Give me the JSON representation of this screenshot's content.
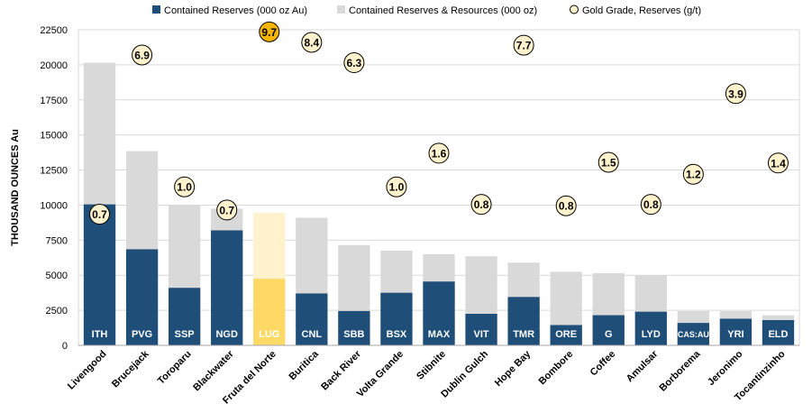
{
  "chart_data": {
    "type": "bar",
    "title": "",
    "ylabel": "THOUSAND  OUNCES Au",
    "xlabel": "",
    "ylim": [
      0,
      22500
    ],
    "yticks": [
      0,
      2500,
      5000,
      7500,
      10000,
      12500,
      15000,
      17500,
      20000,
      22500
    ],
    "grid": true,
    "legend_position": "top",
    "legend": {
      "reserves": "Contained Reserves (000 oz Au)",
      "resources": "Contained Reserves & Resources (000 oz)",
      "grade": "Gold Grade, Reserves (g/t)"
    },
    "categories": [
      "Livengood",
      "Brucejack",
      "Toroparu",
      "Blackwater",
      "Fruta del Norte",
      "Buritica",
      "Back River",
      "Volta Grande",
      "Stibnite",
      "Dublin Gulch",
      "Hope Bay",
      "Bombore",
      "Coffee",
      "Amulsar",
      "Borborema",
      "Jeronimo",
      "Tocantinzinho"
    ],
    "tickers": [
      "ITH",
      "PVG",
      "SSP",
      "NGD",
      "LUG",
      "CNL",
      "SBB",
      "BSX",
      "MAX",
      "VIT",
      "TMR",
      "ORE",
      "G",
      "LYD",
      "CAS:AU",
      "YRI",
      "ELD"
    ],
    "highlight_index": 4,
    "series": [
      {
        "name": "Contained Reserves & Resources (000 oz)",
        "values": [
          20150,
          13850,
          10000,
          9750,
          9450,
          9100,
          7150,
          6750,
          6500,
          6350,
          5900,
          5250,
          5150,
          5000,
          2450,
          2450,
          2150
        ]
      },
      {
        "name": "Contained Reserves (000 oz Au)",
        "values": [
          10050,
          6850,
          4100,
          8200,
          4750,
          3700,
          2450,
          3750,
          4550,
          2250,
          3450,
          1450,
          2150,
          2400,
          1600,
          1900,
          1800
        ]
      },
      {
        "name": "Gold Grade, Reserves (g/t)",
        "values": [
          0.7,
          6.9,
          1.0,
          0.7,
          9.7,
          8.4,
          6.3,
          1.0,
          1.6,
          0.8,
          7.7,
          0.8,
          1.5,
          0.8,
          1.2,
          3.9,
          1.4
        ]
      }
    ],
    "grade_labels": [
      "0.7",
      "6.9",
      "1.0",
      "0.7",
      "9.7",
      "8.4",
      "6.3",
      "1.0",
      "1.6",
      "0.8",
      "7.7",
      "0.8",
      "1.5",
      "0.8",
      "1.2",
      "3.9",
      "1.4"
    ],
    "grade_positions": [
      9350,
      20700,
      11300,
      9650,
      22350,
      21600,
      20150,
      11300,
      13700,
      10050,
      21400,
      9950,
      13050,
      10050,
      12200,
      17950,
      13000
    ],
    "colors": {
      "reserves": "#1f4e79",
      "resources": "#d9d9d9",
      "highlight_reserves": "#ffd966",
      "highlight_resources": "#fff2cc",
      "grade_fill": "#fff2cc",
      "grade_highlight_fill": "#f4b400",
      "grid": "#d9d9d9"
    }
  }
}
